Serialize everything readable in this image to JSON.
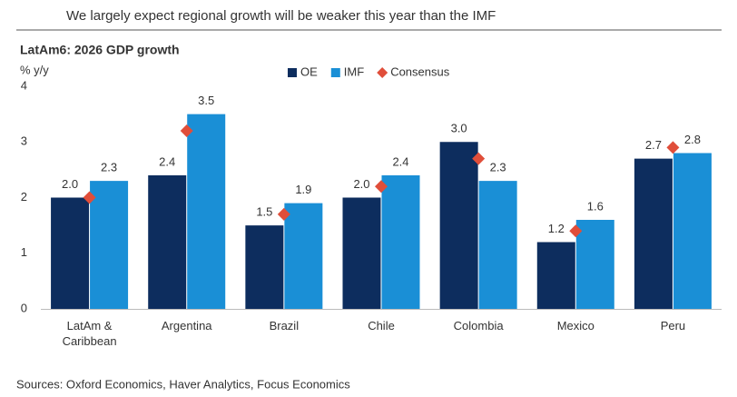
{
  "header": {
    "title": "We largely expect regional growth will be weaker this year than the IMF"
  },
  "chart_data": {
    "type": "bar",
    "title": "LatAm6: 2026 GDP growth",
    "y_label": "% y/y",
    "categories": [
      "LatAm & Caribbean",
      "Argentina",
      "Brazil",
      "Chile",
      "Colombia",
      "Mexico",
      "Peru"
    ],
    "series": [
      {
        "name": "OE",
        "color": "#0d2d5e",
        "type": "bar",
        "values": [
          2.0,
          2.4,
          1.5,
          2.0,
          3.0,
          1.2,
          2.7
        ],
        "value_labels": [
          "2.0",
          "2.4",
          "1.5",
          "2.0",
          "3.0",
          "1.2",
          "2.7"
        ]
      },
      {
        "name": "IMF",
        "color": "#1a8fd6",
        "type": "bar",
        "values": [
          2.3,
          3.5,
          1.9,
          2.4,
          2.3,
          1.6,
          2.8
        ],
        "value_labels": [
          "2.3",
          "3.5",
          "1.9",
          "2.4",
          "2.3",
          "1.6",
          "2.8"
        ]
      },
      {
        "name": "Consensus",
        "color": "#e04e3a",
        "type": "diamond",
        "values": [
          2.0,
          3.2,
          1.7,
          2.2,
          2.7,
          1.4,
          2.9
        ]
      }
    ],
    "ylim": [
      0,
      4
    ],
    "yticks": [
      0,
      1,
      2,
      3,
      4
    ],
    "grid": false
  },
  "source": "Sources: Oxford Economics, Haver Analytics, Focus Economics"
}
